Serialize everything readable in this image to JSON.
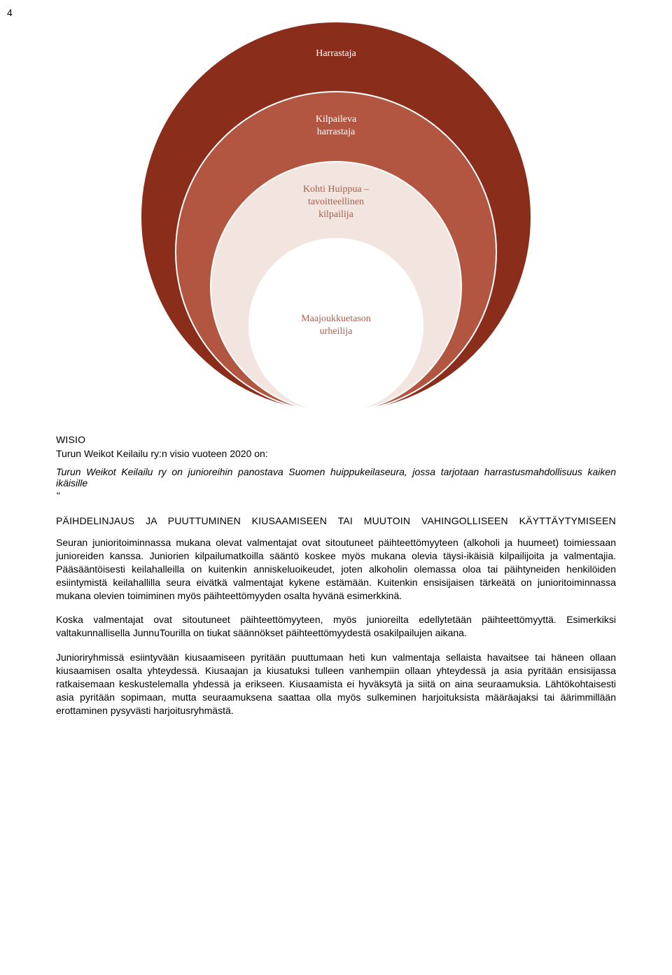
{
  "page_number": "4",
  "diagram": {
    "circles": [
      {
        "label": "Harrastaja",
        "fill": "#8a2e1b"
      },
      {
        "label": "Kilpaileva\nharrastaja",
        "fill": "#b25642"
      },
      {
        "label": "Kohti Huippua –\ntavoitteellinen\nkilpailija",
        "fill": "#f2e4df"
      },
      {
        "label": "Maajoukkuetason\nurheilija",
        "fill": "#ffffff"
      }
    ]
  },
  "wisio_heading": "WISIO",
  "wisio_intro": "Turun Weikot Keilailu ry:n visio vuoteen 2020 on:",
  "wisio_quote": "Turun Weikot Keilailu ry on junioreihin panostava Suomen huippukeilaseura, jossa tarjotaan harrastusmahdollisuus kaiken ikäisille",
  "quote_close": "\"",
  "section_heading": "PÄIHDELINJAUS JA PUUTTUMINEN KIUSAAMISEEN TAI MUUTOIN VAHINGOLLISEEN KÄYTTÄYTYMISEEN",
  "para1": "Seuran junioritoiminnassa mukana olevat valmentajat ovat sitoutuneet päihteettömyyteen (alkoholi ja huumeet) toimiessaan junioreiden kanssa. Juniorien kilpailumatkoilla sääntö koskee myös mukana olevia täysi-ikäisiä kilpailijoita ja valmentajia. Pääsääntöisesti keilahalleilla on kuitenkin anniskeluoikeudet, joten alkoholin olemassa oloa tai päihtyneiden henkilöiden esiintymistä keilahallilla seura eivätkä valmentajat kykene estämään. Kuitenkin ensisijaisen tärkeätä on junioritoiminnassa mukana olevien toimiminen myös päihteettömyyden osalta hyvänä esimerkkinä.",
  "para2": "Koska valmentajat ovat sitoutuneet päihteettömyyteen, myös junioreilta edellytetään päihteettömyyttä. Esimerkiksi valtakunnallisella JunnuTourilla on tiukat säännökset päihteettömyydestä osakilpailujen aikana.",
  "para3": "Junioriryhmissä esiintyvään kiusaamiseen pyritään puuttumaan heti kun valmentaja sellaista havaitsee tai häneen ollaan kiusaamisen osalta yhteydessä. Kiusaajan ja kiusatuksi tulleen vanhempiin ollaan yhteydessä ja asia pyritään ensisijassa ratkaisemaan keskustelemalla yhdessä ja erikseen. Kiusaamista ei hyväksytä ja siitä on aina seuraamuksia. Lähtökohtaisesti asia pyritään sopimaan, mutta seuraamuksena saattaa olla myös sulkeminen harjoituksista määräajaksi tai äärimmillään erottaminen pysyvästi harjoitusryhmästä."
}
